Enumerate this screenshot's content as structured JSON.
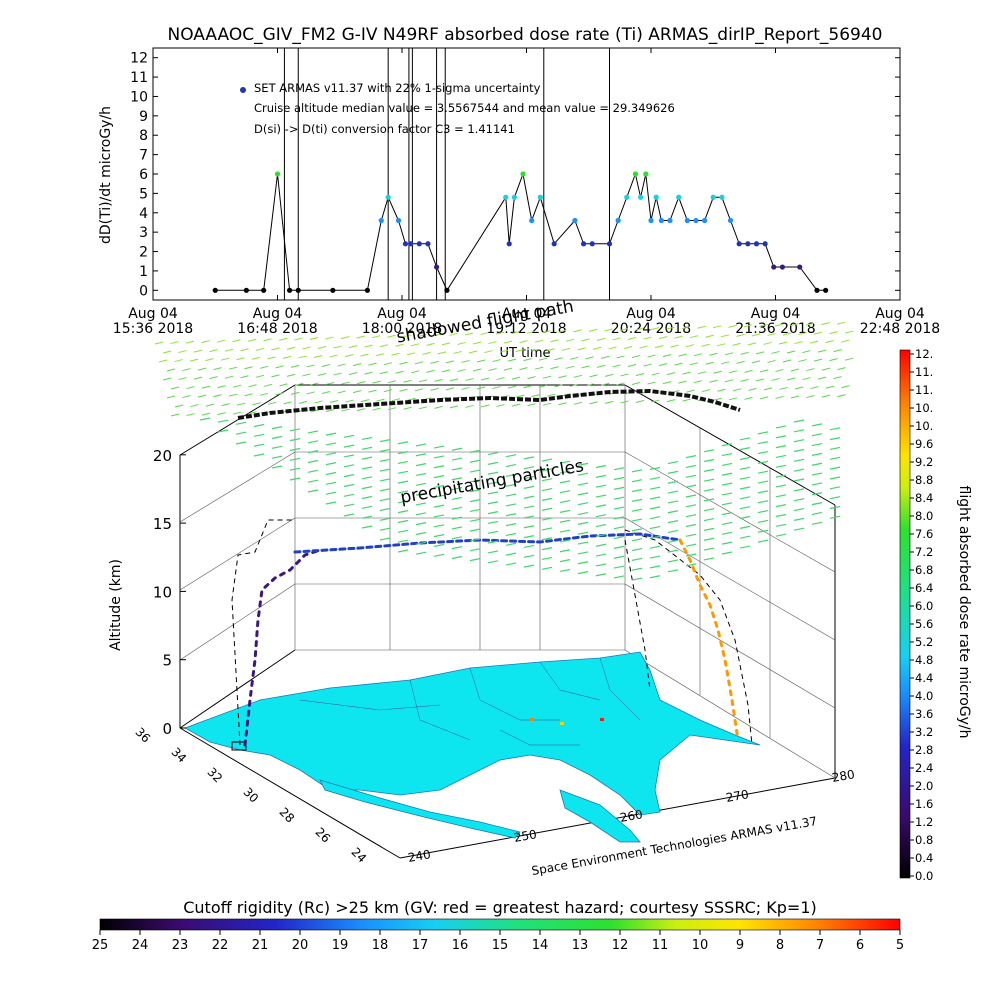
{
  "title": "NOAAAOC_GIV_FM2 G-IV    N49RF   absorbed dose rate (Ti) ARMAS_dirIP_Report_56940",
  "top_chart": {
    "ylabel": "dD(Ti)/dt microGy/h",
    "xlabel": "UT time",
    "y_ticks": [
      "0",
      "1",
      "2",
      "3",
      "4",
      "5",
      "6",
      "7",
      "8",
      "9",
      "10",
      "11",
      "12"
    ],
    "x_ticks": [
      {
        "l1": "Aug 04",
        "l2": "15:36 2018"
      },
      {
        "l1": "Aug 04",
        "l2": "16:48 2018"
      },
      {
        "l1": "Aug 04",
        "l2": "18:00 2018"
      },
      {
        "l1": "Aug 04",
        "l2": "19:12 2018"
      },
      {
        "l1": "Aug 04",
        "l2": "20:24 2018"
      },
      {
        "l1": "Aug 04",
        "l2": "21:36 2018"
      },
      {
        "l1": "Aug 04",
        "l2": "22:48 2018"
      }
    ],
    "legend": [
      "SET ARMAS v11.37 with 22% 1-sigma uncertainty",
      "Cruise altitude median value = 3.5567544 and mean value = 29.349626",
      "D(si) -> D(ti) conversion factor C3 = 1.41141"
    ]
  },
  "globe": {
    "zlabel": "Altitude (km)",
    "z_ticks": [
      "0",
      "5",
      "10",
      "15",
      "20"
    ],
    "lat_ticks": [
      "36",
      "34",
      "32",
      "30",
      "28",
      "26",
      "24"
    ],
    "lon_ticks": [
      "240",
      "250",
      "260",
      "270",
      "280"
    ],
    "label_shadowed": "shadowed flight path",
    "label_precip": "precipitating particles",
    "credit": "Space Environment Technologies ARMAS v11.37"
  },
  "colorbar_right": {
    "label": "flight absorbed dose rate microGy/h",
    "ticks": [
      "0.0",
      "0.4",
      "0.8",
      "1.2",
      "1.6",
      "2.0",
      "2.4",
      "2.8",
      "3.2",
      "3.6",
      "4.0",
      "4.4",
      "4.8",
      "5.2",
      "5.6",
      "6.0",
      "6.4",
      "6.8",
      "7.2",
      "7.6",
      "8.0",
      "8.4",
      "8.8",
      "9.2",
      "9.6",
      "10.",
      "10.",
      "11.",
      "11.",
      "12."
    ]
  },
  "colorbar_bottom": {
    "label": "Cutoff rigidity (Rc) >25 km (GV: red = greatest hazard; courtesy SSSRC; Kp=1)",
    "ticks": [
      "25",
      "24",
      "23",
      "22",
      "21",
      "20",
      "19",
      "18",
      "17",
      "16",
      "15",
      "14",
      "13",
      "12",
      "11",
      "10",
      "9",
      "8",
      "7",
      "6",
      "5"
    ]
  },
  "chart_data": {
    "type": "scatter",
    "title": "NOAAAOC_GIV_FM2 G-IV    N49RF   absorbed dose rate (Ti) ARMAS_dirIP_Report_56940",
    "xlabel": "UT time",
    "ylabel": "dD(Ti)/dt microGy/h",
    "xlim": [
      "2018-08-04 15:36",
      "2018-08-04 22:48"
    ],
    "ylim": [
      0,
      12
    ],
    "series": [
      {
        "name": "SET ARMAS v11.37 with 22% 1-sigma uncertainty",
        "x": [
          "16:12",
          "16:30",
          "16:40",
          "16:48",
          "16:55",
          "17:00",
          "17:20",
          "17:40",
          "17:48",
          "17:52",
          "17:58",
          "18:02",
          "18:05",
          "18:10",
          "18:15",
          "18:20",
          "18:26",
          "19:00",
          "19:02",
          "19:05",
          "19:10",
          "19:15",
          "19:20",
          "19:28",
          "19:40",
          "19:45",
          "19:50",
          "20:00",
          "20:05",
          "20:10",
          "20:15",
          "20:18",
          "20:21",
          "20:24",
          "20:27",
          "20:30",
          "20:35",
          "20:40",
          "20:45",
          "20:50",
          "20:55",
          "21:00",
          "21:05",
          "21:10",
          "21:15",
          "21:20",
          "21:25",
          "21:30",
          "21:35",
          "21:40",
          "21:50",
          "22:00",
          "22:05"
        ],
        "y": [
          0,
          0,
          0,
          6,
          0,
          0,
          0,
          0,
          3.6,
          4.8,
          3.6,
          2.4,
          2.4,
          2.4,
          2.4,
          1.2,
          0,
          4.8,
          2.4,
          4.8,
          6,
          3.6,
          4.8,
          2.4,
          3.6,
          2.4,
          2.4,
          2.4,
          3.6,
          4.8,
          6,
          4.8,
          6,
          3.6,
          4.8,
          3.6,
          3.6,
          4.8,
          3.6,
          3.6,
          3.6,
          4.8,
          4.8,
          3.6,
          2.4,
          2.4,
          2.4,
          2.4,
          1.2,
          1.2,
          1.2,
          0,
          0
        ]
      }
    ]
  }
}
